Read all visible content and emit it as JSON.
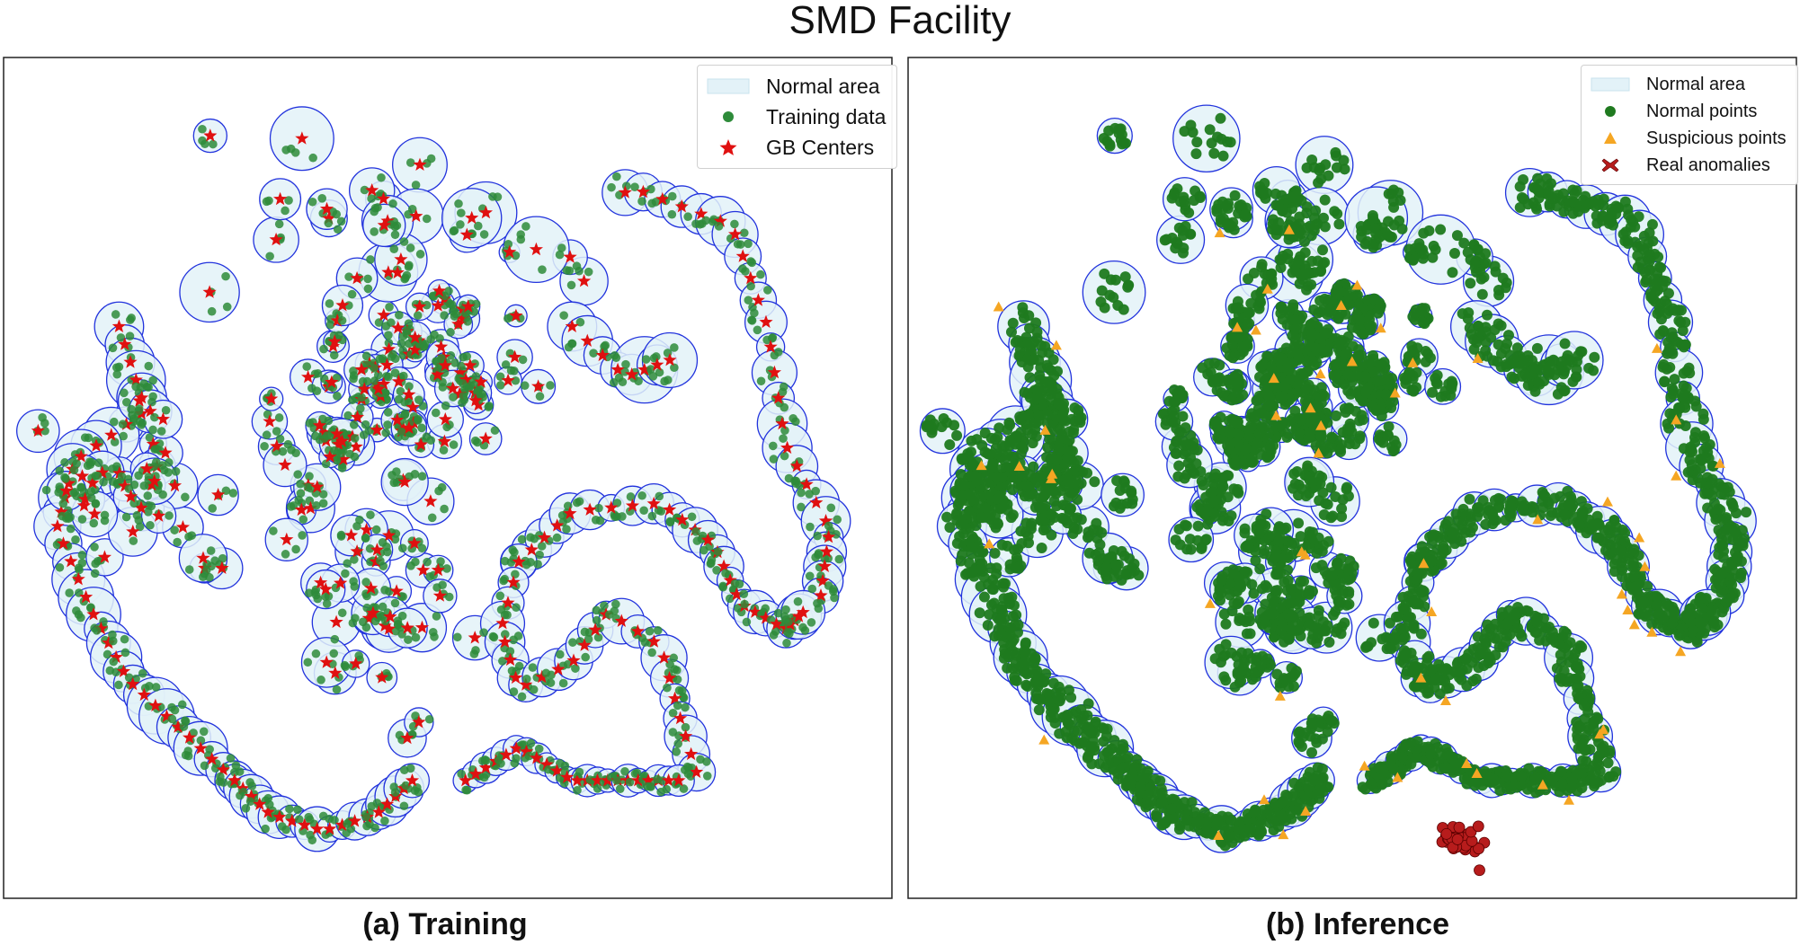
{
  "figure": {
    "title": "SMD Facility"
  },
  "chart_data": [
    {
      "type": "scatter",
      "panel_label": "(a) Training",
      "xlabel": "",
      "ylabel": "",
      "grid": false,
      "legend_position": "top-right",
      "legend": [
        {
          "label": "Normal area",
          "marker": "patch",
          "color": "#e3f2f8"
        },
        {
          "label": "Training data",
          "marker": "circle",
          "color": "#2e8b3a"
        },
        {
          "label": "GB Centers",
          "marker": "star",
          "color": "#e01010"
        }
      ],
      "colors": {
        "ball_fill": "#e3f2f8",
        "ball_edge": "#2233dd",
        "points": "#2e8b3a",
        "centers": "#e01010"
      },
      "granular_balls_path": [
        [
          8,
          38
        ],
        [
          10,
          45
        ],
        [
          14,
          52
        ],
        [
          19,
          58
        ],
        [
          24,
          65
        ],
        [
          30,
          70
        ],
        [
          34,
          76
        ],
        [
          38,
          80
        ],
        [
          42,
          86
        ],
        [
          48,
          88
        ],
        [
          52,
          88
        ],
        [
          57,
          88
        ]
      ],
      "clusters": [
        {
          "name": "upper dense cluster",
          "center": [
            40,
            67
          ],
          "spread": 6
        },
        {
          "name": "upper-right dense cluster",
          "center": [
            50,
            68
          ],
          "spread": 5
        },
        {
          "name": "middle cluster",
          "center": [
            45,
            45
          ],
          "spread": 9
        },
        {
          "name": "ring",
          "center": [
            70,
            40
          ],
          "spread": 14
        },
        {
          "name": "bottom chain",
          "center": [
            65,
            15
          ],
          "spread": 8
        },
        {
          "name": "right arc",
          "center": [
            85,
            60
          ],
          "spread": 8
        },
        {
          "name": "upper scatter",
          "center": [
            48,
            88
          ],
          "spread": 10
        }
      ]
    },
    {
      "type": "scatter",
      "panel_label": "(b) Inference",
      "xlabel": "",
      "ylabel": "",
      "grid": false,
      "legend_position": "top-right",
      "legend": [
        {
          "label": "Normal area",
          "marker": "patch",
          "color": "#e3f2f8"
        },
        {
          "label": "Normal points",
          "marker": "circle",
          "color": "#1f7a1f"
        },
        {
          "label": "Suspicious points",
          "marker": "triangle",
          "color": "#f5a623"
        },
        {
          "label": "Real anomalies",
          "marker": "x",
          "color": "#b71c1c"
        }
      ],
      "colors": {
        "ball_fill": "#e3f2f8",
        "ball_edge": "#2233dd",
        "points": "#1f7a1f",
        "suspicious": "#f5a623",
        "anomalies": "#b71c1c"
      },
      "anomaly_cluster": {
        "center": [
          62,
          6
        ],
        "spread": 2
      }
    }
  ]
}
